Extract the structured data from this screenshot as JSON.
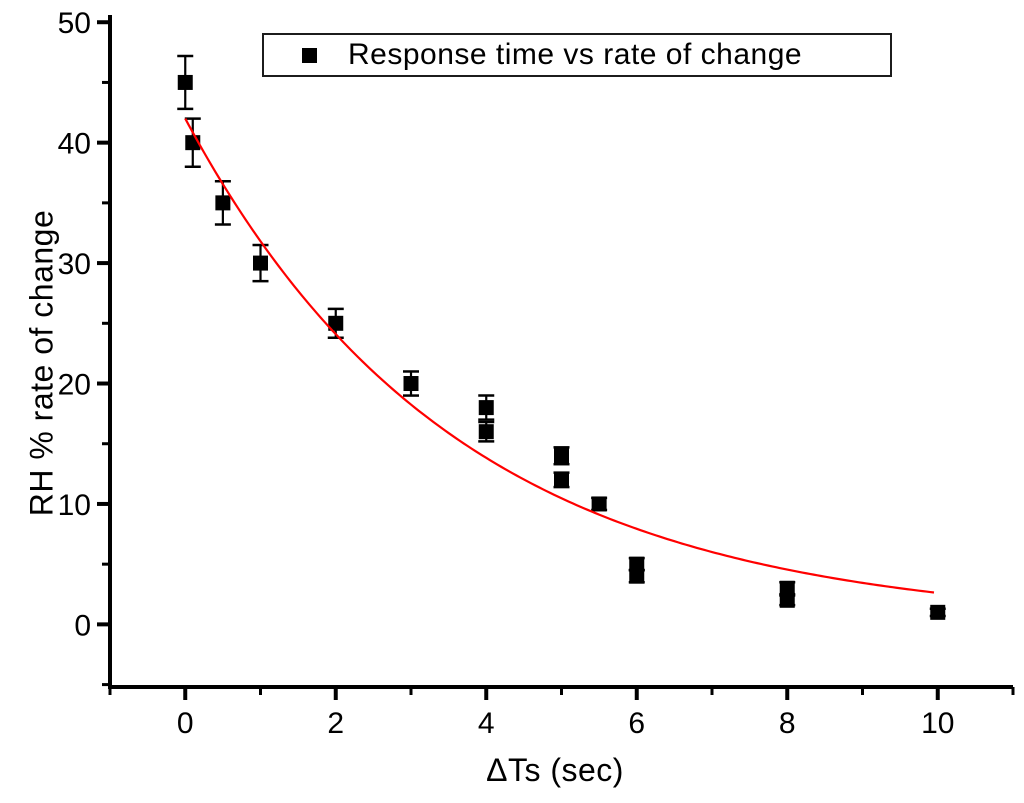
{
  "figure": {
    "background": "#ffffff"
  },
  "chart_data": {
    "type": "scatter",
    "title": "",
    "xlabel": "ΔTs (sec)",
    "ylabel": "RH % rate of change",
    "legend": {
      "label": "Response time vs rate of change",
      "position": "top-center-inside"
    },
    "xlim": [
      -1,
      11
    ],
    "ylim": [
      -5.2,
      50.6
    ],
    "x_major_ticks": [
      0,
      2,
      4,
      6,
      8,
      10
    ],
    "x_minor_ticks": [
      -1,
      1,
      3,
      5,
      7,
      9,
      11
    ],
    "y_major_ticks": [
      0,
      10,
      20,
      30,
      40,
      50
    ],
    "y_minor_ticks": [
      -5,
      5,
      15,
      25,
      35,
      45
    ],
    "grid": false,
    "points": [
      {
        "x": 0,
        "y": 45,
        "err": 2.2
      },
      {
        "x": 0.1,
        "y": 40,
        "err": 2.0
      },
      {
        "x": 0.5,
        "y": 35,
        "err": 1.8
      },
      {
        "x": 1,
        "y": 30,
        "err": 1.5
      },
      {
        "x": 2,
        "y": 25,
        "err": 1.2
      },
      {
        "x": 3,
        "y": 20,
        "err": 1.0
      },
      {
        "x": 4,
        "y": 18,
        "err": 1.0
      },
      {
        "x": 4,
        "y": 16,
        "err": 0.8
      },
      {
        "x": 5,
        "y": 14,
        "err": 0.7
      },
      {
        "x": 5,
        "y": 12,
        "err": 0.6
      },
      {
        "x": 5.5,
        "y": 10,
        "err": 0.5
      },
      {
        "x": 6,
        "y": 5,
        "err": 0.5
      },
      {
        "x": 6,
        "y": 4,
        "err": 0.5
      },
      {
        "x": 8,
        "y": 3,
        "err": 0.5
      },
      {
        "x": 8,
        "y": 2,
        "err": 0.4
      },
      {
        "x": 10,
        "y": 1,
        "err": 0.3
      }
    ],
    "fit_curve": {
      "type": "exponential",
      "formula": "y = 42*exp(-x/3.6)",
      "a": 42,
      "tau": 3.6,
      "x_start": 0,
      "x_end": 9.95,
      "color": "#ff0000"
    },
    "marker": {
      "shape": "square",
      "size": 15,
      "color": "#000000"
    },
    "colors": {
      "axis": "#000000",
      "curve": "#ff0000",
      "marker": "#000000"
    }
  }
}
